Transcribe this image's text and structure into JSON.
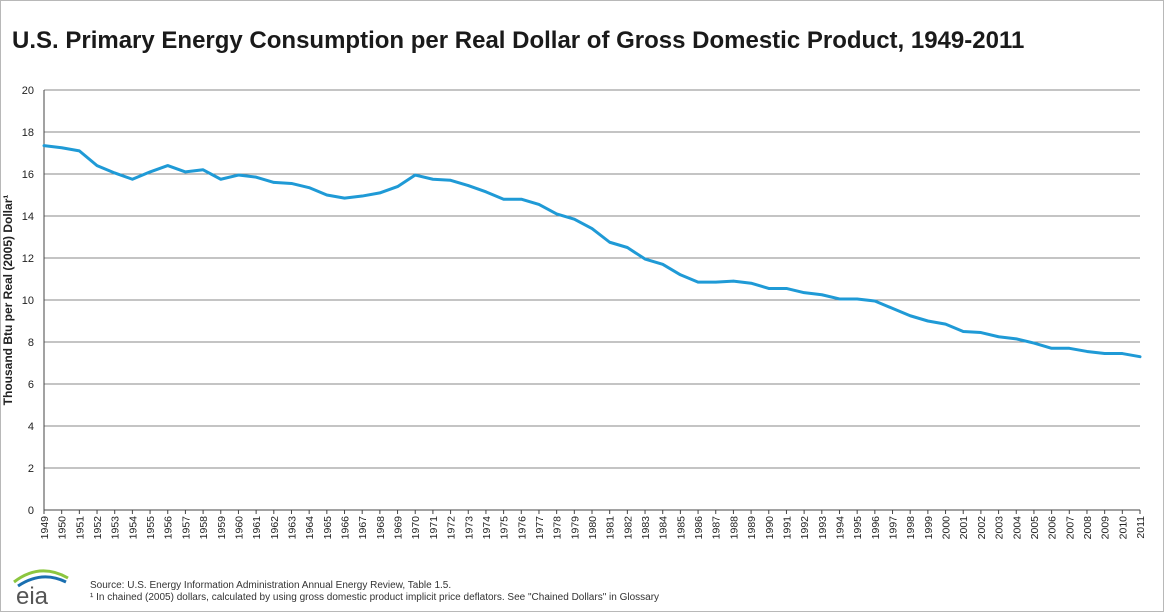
{
  "page": {
    "title": "U.S. Primary Energy Consumption per Real Dollar of Gross Domestic Product, 1949-2011",
    "source_note": "Source: U.S. Energy Information Administration Annual Energy Review, Table 1.5.",
    "footnote": "¹ In chained (2005) dollars, calculated by using gross domestic product implicit price deflators.  See \"Chained Dollars\" in Glossary",
    "logo_text": "eia"
  },
  "colors": {
    "line": "#1f9ad6",
    "grid": "#8a8a8a",
    "axis": "#444444",
    "logo_blue": "#1a6fb0",
    "logo_green": "#8cc63f"
  },
  "chart_data": {
    "type": "line",
    "title": "U.S. Primary Energy Consumption per Real Dollar of Gross Domestic Product, 1949-2011",
    "xlabel": "",
    "ylabel": "Thousand Btu per Real (2005) Dollar¹",
    "ylim": [
      0,
      20
    ],
    "yticks": [
      "0",
      "2",
      "4",
      "6",
      "8",
      "10",
      "12",
      "14",
      "16",
      "18",
      "20"
    ],
    "grid": true,
    "legend": "none",
    "x": [
      "1949",
      "1950",
      "1951",
      "1952",
      "1953",
      "1954",
      "1955",
      "1956",
      "1957",
      "1958",
      "1959",
      "1960",
      "1961",
      "1962",
      "1963",
      "1964",
      "1965",
      "1966",
      "1967",
      "1968",
      "1969",
      "1970",
      "1971",
      "1972",
      "1973",
      "1974",
      "1975",
      "1976",
      "1977",
      "1978",
      "1979",
      "1980",
      "1981",
      "1982",
      "1983",
      "1984",
      "1985",
      "1986",
      "1987",
      "1988",
      "1989",
      "1990",
      "1991",
      "1992",
      "1993",
      "1994",
      "1995",
      "1996",
      "1997",
      "1998",
      "1999",
      "2000",
      "2001",
      "2002",
      "2003",
      "2004",
      "2005",
      "2006",
      "2007",
      "2008",
      "2009",
      "2010",
      "2011"
    ],
    "series": [
      {
        "values": [
          17.35,
          17.25,
          17.1,
          16.4,
          16.05,
          15.75,
          16.1,
          16.4,
          16.1,
          16.2,
          15.75,
          15.95,
          15.85,
          15.6,
          15.55,
          15.35,
          15.0,
          14.85,
          14.95,
          15.1,
          15.4,
          15.95,
          15.75,
          15.7,
          15.45,
          15.15,
          14.8,
          14.8,
          14.55,
          14.1,
          13.85,
          13.4,
          12.75,
          12.5,
          11.95,
          11.7,
          11.2,
          10.85,
          10.85,
          10.9,
          10.8,
          10.55,
          10.55,
          10.35,
          10.25,
          10.05,
          10.05,
          9.95,
          9.6,
          9.25,
          9.0,
          8.85,
          8.5,
          8.45,
          8.25,
          8.15,
          7.95,
          7.7,
          7.7,
          7.55,
          7.45,
          7.45,
          7.3
        ]
      }
    ]
  }
}
